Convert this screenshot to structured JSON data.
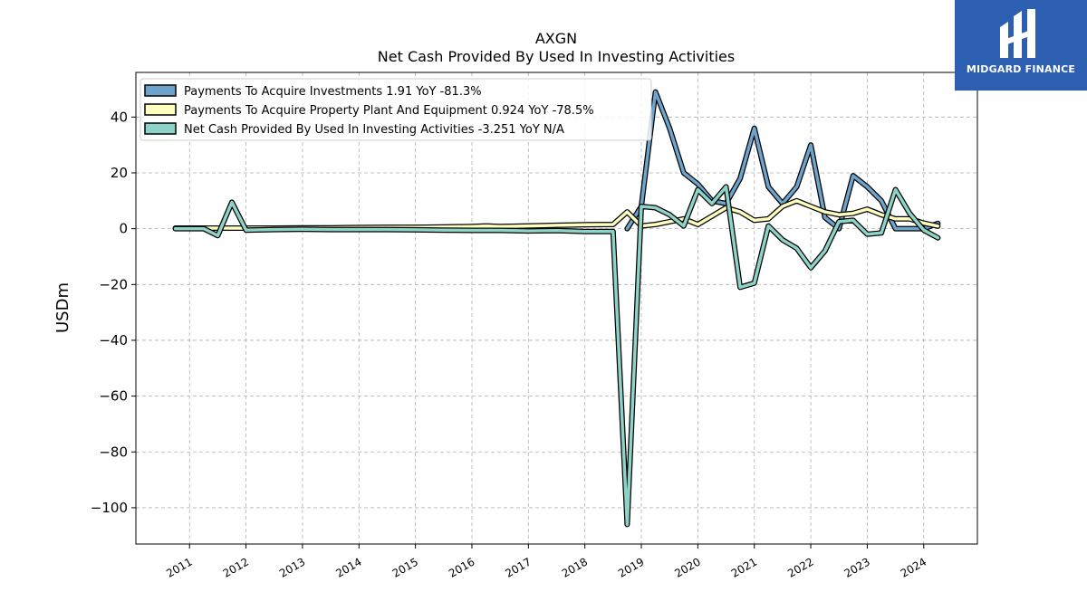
{
  "brand": {
    "name": "MIDGARD FINANCE",
    "color": "#2d5fb0"
  },
  "chart_data": {
    "type": "line",
    "title": "AXGN",
    "subtitle": "Net Cash Provided By Used In Investing Activities",
    "ylabel": "USDm",
    "xlabel": "",
    "ylim": [
      -113,
      56
    ],
    "xlim": [
      2010.05,
      2024.95
    ],
    "yticks": [
      40,
      20,
      0,
      -20,
      -40,
      -60,
      -80,
      -100
    ],
    "ytick_labels": [
      "40",
      "20",
      "0",
      "−20",
      "−40",
      "−60",
      "−80",
      "−100"
    ],
    "xticks": [
      2011,
      2012,
      2013,
      2014,
      2015,
      2016,
      2017,
      2018,
      2019,
      2020,
      2021,
      2022,
      2023,
      2024
    ],
    "xtick_labels": [
      "2011",
      "2012",
      "2013",
      "2014",
      "2015",
      "2016",
      "2017",
      "2018",
      "2019",
      "2020",
      "2021",
      "2022",
      "2023",
      "2024"
    ],
    "grid": true,
    "legend_position": "top-left",
    "series": [
      {
        "name": "Payments To Acquire Investments  1.91 YoY -81.3%",
        "color": "#6ea3cc",
        "points": [
          [
            2018.75,
            0
          ],
          [
            2019.0,
            8
          ],
          [
            2019.25,
            49
          ],
          [
            2019.5,
            36
          ],
          [
            2019.75,
            20
          ],
          [
            2020.0,
            16
          ],
          [
            2020.25,
            10
          ],
          [
            2020.5,
            9
          ],
          [
            2020.75,
            18
          ],
          [
            2021.0,
            36
          ],
          [
            2021.25,
            15
          ],
          [
            2021.5,
            9
          ],
          [
            2021.75,
            15
          ],
          [
            2022.0,
            30
          ],
          [
            2022.25,
            4
          ],
          [
            2022.5,
            0
          ],
          [
            2022.75,
            19
          ],
          [
            2023.0,
            15
          ],
          [
            2023.25,
            10
          ],
          [
            2023.5,
            0
          ],
          [
            2023.75,
            0
          ],
          [
            2024.0,
            0
          ],
          [
            2024.25,
            1.9
          ]
        ]
      },
      {
        "name": "Payments To Acquire Property Plant And Equipment  0.924 YoY -78.5%",
        "color": "#ffffbf",
        "points": [
          [
            2010.75,
            0.2
          ],
          [
            2011.0,
            0.2
          ],
          [
            2011.25,
            0.2
          ],
          [
            2011.5,
            0.2
          ],
          [
            2011.75,
            0.2
          ],
          [
            2012.0,
            0.2
          ],
          [
            2012.5,
            0.2
          ],
          [
            2013.0,
            0.3
          ],
          [
            2013.5,
            0.3
          ],
          [
            2014.0,
            0.4
          ],
          [
            2014.5,
            0.5
          ],
          [
            2015.0,
            0.5
          ],
          [
            2015.5,
            0.6
          ],
          [
            2016.0,
            0.8
          ],
          [
            2016.25,
            1.0
          ],
          [
            2016.5,
            0.8
          ],
          [
            2017.0,
            1.0
          ],
          [
            2017.5,
            1.2
          ],
          [
            2018.0,
            1.4
          ],
          [
            2018.5,
            1.5
          ],
          [
            2018.75,
            6
          ],
          [
            2019.0,
            1
          ],
          [
            2019.25,
            1.5
          ],
          [
            2019.5,
            2.5
          ],
          [
            2019.75,
            3.5
          ],
          [
            2020.0,
            1.5
          ],
          [
            2020.25,
            4.5
          ],
          [
            2020.5,
            7.5
          ],
          [
            2020.75,
            6
          ],
          [
            2021.0,
            3
          ],
          [
            2021.25,
            3.5
          ],
          [
            2021.5,
            8
          ],
          [
            2021.75,
            10
          ],
          [
            2022.0,
            8
          ],
          [
            2022.25,
            6
          ],
          [
            2022.5,
            5
          ],
          [
            2022.75,
            5.5
          ],
          [
            2023.0,
            7
          ],
          [
            2023.25,
            5
          ],
          [
            2023.5,
            3.5
          ],
          [
            2023.75,
            3.5
          ],
          [
            2024.0,
            2
          ],
          [
            2024.25,
            0.92
          ]
        ]
      },
      {
        "name": "Net Cash Provided By Used In Investing Activities  -3.251 YoY N/A",
        "color": "#8dd3c7",
        "points": [
          [
            2010.75,
            0
          ],
          [
            2011.0,
            0
          ],
          [
            2011.25,
            0
          ],
          [
            2011.5,
            -2.5
          ],
          [
            2011.75,
            9.5
          ],
          [
            2012.0,
            -0.5
          ],
          [
            2012.5,
            -0.3
          ],
          [
            2013.0,
            -0.2
          ],
          [
            2013.5,
            -0.3
          ],
          [
            2014.0,
            -0.3
          ],
          [
            2014.5,
            -0.3
          ],
          [
            2015.0,
            -0.4
          ],
          [
            2015.5,
            -0.5
          ],
          [
            2016.0,
            -0.6
          ],
          [
            2016.5,
            -0.6
          ],
          [
            2017.0,
            -0.8
          ],
          [
            2017.5,
            -0.7
          ],
          [
            2018.0,
            -1.0
          ],
          [
            2018.5,
            -1.0
          ],
          [
            2018.75,
            -106
          ],
          [
            2019.0,
            8
          ],
          [
            2019.25,
            7.5
          ],
          [
            2019.5,
            5
          ],
          [
            2019.75,
            1
          ],
          [
            2020.0,
            14
          ],
          [
            2020.25,
            9
          ],
          [
            2020.5,
            15
          ],
          [
            2020.75,
            -21
          ],
          [
            2021.0,
            -19.5
          ],
          [
            2021.25,
            1
          ],
          [
            2021.5,
            -4
          ],
          [
            2021.75,
            -7
          ],
          [
            2022.0,
            -14
          ],
          [
            2022.25,
            -8
          ],
          [
            2022.5,
            2.5
          ],
          [
            2022.75,
            3
          ],
          [
            2023.0,
            -2
          ],
          [
            2023.25,
            -1.5
          ],
          [
            2023.5,
            14
          ],
          [
            2023.75,
            5.5
          ],
          [
            2024.0,
            -0.5
          ],
          [
            2024.25,
            -3.25
          ]
        ]
      }
    ]
  }
}
